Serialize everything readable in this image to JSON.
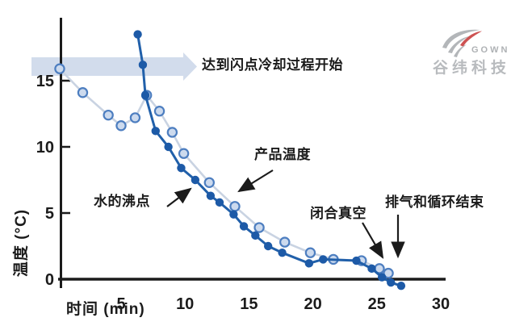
{
  "logo": {
    "company_en": "GOWN",
    "company_cn": "谷纬科技",
    "gray": "#b3b6b9",
    "red": "#cd5252"
  },
  "chart_data": {
    "type": "line",
    "title": "",
    "xlabel": "时间 (min)",
    "ylabel": "温度 (°C)",
    "xlim": [
      0,
      30
    ],
    "ylim": [
      -1,
      19
    ],
    "xticks": [
      5,
      10,
      15,
      20,
      25,
      30
    ],
    "yticks": [
      0,
      5,
      10,
      15
    ],
    "grid": false,
    "legend": "none (labels via arrows)",
    "axis_color": "#1b1b1b",
    "flash_band": {
      "temp_center": 16,
      "color": "#d2dcec"
    },
    "series": [
      {
        "id": "product-temperature",
        "name": "产品温度",
        "marker": "open-circle",
        "line_color": "#c9d3e2",
        "line_width": 2.6,
        "marker_fill": "#ccdaee",
        "marker_stroke": "#4d7ec0",
        "marker_radius": 5.6,
        "points": [
          [
            0.2,
            15.9
          ],
          [
            2.0,
            14.1
          ],
          [
            4.0,
            12.4
          ],
          [
            5.0,
            11.6
          ],
          [
            6.1,
            12.2
          ],
          [
            7.0,
            13.9
          ],
          [
            8.0,
            12.7
          ],
          [
            9.0,
            11.1
          ],
          [
            9.9,
            9.5
          ],
          [
            11.9,
            7.3
          ],
          [
            13.9,
            5.5
          ],
          [
            15.8,
            3.9
          ],
          [
            17.8,
            2.8
          ],
          [
            19.8,
            2.0
          ],
          [
            21.6,
            1.5
          ],
          [
            23.8,
            1.4
          ],
          [
            25.2,
            0.8
          ],
          [
            25.9,
            0.45
          ]
        ]
      },
      {
        "id": "water-boiling-point",
        "name": "水的沸点",
        "marker": "filled-circle",
        "line_color": "#2160aa",
        "line_width": 3,
        "marker_fill": "#1d5aa7",
        "marker_stroke": "",
        "marker_radius": 5.2,
        "points": [
          [
            6.3,
            18.5
          ],
          [
            6.7,
            16.2
          ],
          [
            6.9,
            13.9
          ],
          [
            7.7,
            11.2
          ],
          [
            8.7,
            10.0
          ],
          [
            9.7,
            8.4
          ],
          [
            10.8,
            7.5
          ],
          [
            12.0,
            6.3
          ],
          [
            12.7,
            5.8
          ],
          [
            13.8,
            4.9
          ],
          [
            14.6,
            4.0
          ],
          [
            15.5,
            3.3
          ],
          [
            16.5,
            2.5
          ],
          [
            17.6,
            2.0
          ],
          [
            19.7,
            1.2
          ],
          [
            20.8,
            1.5
          ],
          [
            23.4,
            1.4
          ],
          [
            24.6,
            0.8
          ],
          [
            25.4,
            0.15
          ],
          [
            26.1,
            -0.25
          ],
          [
            26.9,
            -0.5
          ]
        ]
      }
    ],
    "annotations": {
      "flash_point": "达到闪点冷却过程开始",
      "product_temp": "产品温度",
      "boiling_point": "水的沸点",
      "close_vacuum": "闭合真空",
      "vent_end": "排气和循环结束"
    }
  }
}
